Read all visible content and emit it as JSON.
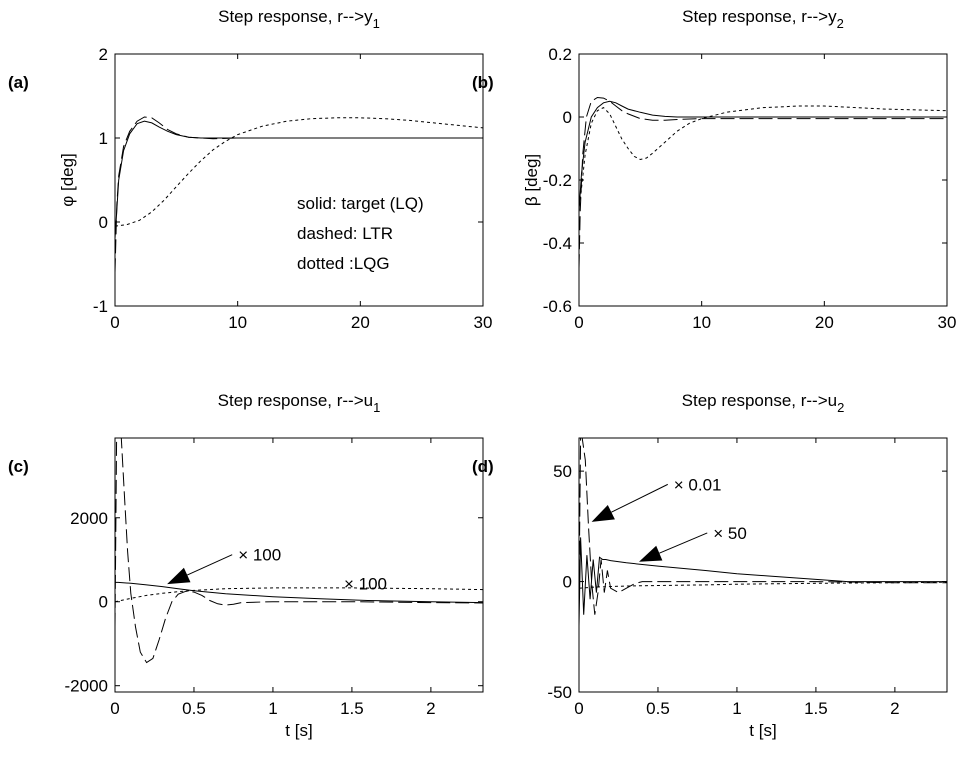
{
  "chart_data": [
    {
      "type": "line",
      "panel": "(a)",
      "title": "Step response, r-->y",
      "title_sub": "1",
      "xlabel": "",
      "ylabel": "φ [deg]",
      "xlim": [
        0,
        30
      ],
      "ylim": [
        -1,
        2
      ],
      "xticks": [
        "0",
        "10",
        "20",
        "30"
      ],
      "xtick_values": [
        0,
        10,
        20,
        30
      ],
      "yticks": [
        "-1",
        "0",
        "1",
        "2"
      ],
      "ytick_values": [
        -1,
        0,
        1,
        2
      ],
      "legend_text": [
        "solid: target (LQ)",
        "dashed: LTR",
        "dotted :LQG"
      ],
      "annotations": [],
      "series": [
        {
          "style": "solid",
          "x": [
            0,
            0.3,
            0.7,
            1.2,
            1.8,
            2.4,
            3.0,
            3.6,
            4.3,
            5.0,
            6.0,
            7.0,
            8.0,
            9.0,
            10,
            15,
            20,
            25,
            30
          ],
          "y": [
            -0.2,
            0.5,
            0.85,
            1.05,
            1.17,
            1.2,
            1.18,
            1.13,
            1.08,
            1.04,
            1.01,
            1.0,
            1.0,
            1.0,
            1.0,
            1.0,
            1.0,
            1.0,
            1.0
          ]
        },
        {
          "style": "dashed",
          "x": [
            0,
            0.15,
            0.3,
            0.7,
            1.2,
            1.8,
            2.4,
            3.0,
            3.6,
            4.3,
            5.0,
            6.0,
            7.0,
            8.0,
            10,
            15,
            20,
            25,
            30
          ],
          "y": [
            -0.6,
            0.2,
            0.55,
            0.9,
            1.08,
            1.2,
            1.25,
            1.24,
            1.18,
            1.1,
            1.05,
            1.01,
            1.0,
            0.99,
            1.0,
            1.0,
            1.0,
            1.0,
            1.0
          ]
        },
        {
          "style": "dotted",
          "x": [
            0,
            1,
            2,
            3,
            4,
            5,
            6,
            7,
            8,
            9,
            10,
            12,
            14,
            16,
            18,
            20,
            22,
            24,
            26,
            28,
            30
          ],
          "y": [
            -0.05,
            -0.03,
            0.02,
            0.12,
            0.26,
            0.42,
            0.58,
            0.73,
            0.86,
            0.96,
            1.04,
            1.14,
            1.2,
            1.23,
            1.24,
            1.24,
            1.23,
            1.21,
            1.18,
            1.15,
            1.12
          ]
        }
      ]
    },
    {
      "type": "line",
      "panel": "(b)",
      "title": "Step response, r-->y",
      "title_sub": "2",
      "xlabel": "",
      "ylabel": "β [deg]",
      "xlim": [
        0,
        30
      ],
      "ylim": [
        -0.6,
        0.2
      ],
      "xticks": [
        "0",
        "10",
        "20",
        "30"
      ],
      "xtick_values": [
        0,
        10,
        20,
        30
      ],
      "yticks": [
        "-0.6",
        "-0.4",
        "-0.2",
        "0",
        "0.2"
      ],
      "ytick_values": [
        -0.6,
        -0.4,
        -0.2,
        0,
        0.2
      ],
      "legend_text": [],
      "annotations": [],
      "series": [
        {
          "style": "solid",
          "x": [
            0,
            0.2,
            0.5,
            1.0,
            1.5,
            2.0,
            2.5,
            3.0,
            3.5,
            4.0,
            5.0,
            6.0,
            7.0,
            8.0,
            10,
            15,
            20,
            25,
            30
          ],
          "y": [
            -0.3,
            -0.18,
            -0.08,
            0.0,
            0.03,
            0.045,
            0.05,
            0.045,
            0.035,
            0.025,
            0.015,
            0.006,
            0.002,
            0.0,
            0.0,
            0.0,
            0.0,
            0.0,
            0.0
          ]
        },
        {
          "style": "dashed",
          "x": [
            0,
            0.1,
            0.3,
            0.6,
            1.0,
            1.5,
            2.0,
            2.5,
            3.0,
            3.5,
            4.0,
            5.0,
            6.0,
            7.0,
            8.0,
            10,
            15,
            20,
            25,
            30
          ],
          "y": [
            -0.48,
            -0.3,
            -0.12,
            0.0,
            0.05,
            0.062,
            0.06,
            0.05,
            0.035,
            0.02,
            0.01,
            -0.005,
            -0.01,
            -0.01,
            -0.008,
            -0.005,
            -0.005,
            -0.005,
            -0.005,
            -0.005
          ]
        },
        {
          "style": "dotted",
          "x": [
            0,
            0.5,
            1.0,
            1.5,
            2.0,
            2.5,
            3.0,
            3.5,
            4.0,
            4.5,
            5.0,
            5.5,
            6.0,
            7.0,
            8.0,
            9.0,
            10,
            12,
            15,
            18,
            20,
            25,
            30
          ],
          "y": [
            -0.3,
            -0.12,
            -0.02,
            0.02,
            0.03,
            0.01,
            -0.03,
            -0.07,
            -0.1,
            -0.125,
            -0.135,
            -0.13,
            -0.115,
            -0.08,
            -0.045,
            -0.02,
            -0.005,
            0.015,
            0.03,
            0.035,
            0.035,
            0.025,
            0.02
          ]
        }
      ]
    },
    {
      "type": "line",
      "panel": "(c)",
      "title": "Step response, r-->u",
      "title_sub": "1",
      "xlabel": "t [s]",
      "ylabel": "",
      "xlim": [
        0,
        2.33
      ],
      "ylim": [
        -2150,
        3900
      ],
      "xticks": [
        "0",
        "0.5",
        "1",
        "1.5",
        "2"
      ],
      "xtick_values": [
        0,
        0.5,
        1,
        1.5,
        2
      ],
      "yticks": [
        "-2000",
        "0",
        "2000"
      ],
      "ytick_values": [
        -2000,
        0,
        2000
      ],
      "legend_text": [],
      "annotations": [
        {
          "label": "× 100",
          "x": 0.78,
          "y": 1120,
          "arrow": true,
          "ax": 0.33,
          "ay": 420
        },
        {
          "label": "× 100",
          "x": 1.45,
          "y": 430,
          "arrow": false
        }
      ],
      "series": [
        {
          "style": "solid",
          "x": [
            0,
            0.02,
            0.1,
            0.2,
            0.3,
            0.4,
            0.5,
            0.7,
            1.0,
            1.3,
            1.6,
            2.0,
            2.33
          ],
          "y": [
            460,
            460,
            440,
            400,
            360,
            310,
            260,
            190,
            120,
            70,
            30,
            0,
            -20
          ]
        },
        {
          "style": "dashed",
          "x": [
            0,
            0.01,
            0.02,
            0.04,
            0.06,
            0.08,
            0.1,
            0.13,
            0.16,
            0.2,
            0.24,
            0.28,
            0.32,
            0.36,
            0.4,
            0.45,
            0.5,
            0.55,
            0.6,
            0.65,
            0.7,
            0.75,
            0.8,
            1.0,
            1.5,
            2.0,
            2.33
          ],
          "y": [
            -600,
            3900,
            3900,
            3900,
            2500,
            1200,
            200,
            -600,
            -1200,
            -1450,
            -1350,
            -900,
            -400,
            0,
            180,
            250,
            230,
            150,
            30,
            -50,
            -80,
            -60,
            -20,
            0,
            0,
            -20,
            -30
          ]
        },
        {
          "style": "dotted",
          "x": [
            0,
            0.1,
            0.2,
            0.3,
            0.4,
            0.5,
            0.7,
            1.0,
            1.5,
            2.0,
            2.33
          ],
          "y": [
            0,
            80,
            150,
            200,
            240,
            270,
            310,
            330,
            330,
            310,
            290
          ]
        }
      ]
    },
    {
      "type": "line",
      "panel": "(d)",
      "title": "Step response, r-->u",
      "title_sub": "2",
      "xlabel": "t [s]",
      "ylabel": "",
      "xlim": [
        0,
        2.33
      ],
      "ylim": [
        -50,
        65
      ],
      "xticks": [
        "0",
        "0.5",
        "1",
        "1.5",
        "2"
      ],
      "xtick_values": [
        0,
        0.5,
        1,
        1.5,
        2
      ],
      "yticks": [
        "-50",
        "0",
        "50"
      ],
      "ytick_values": [
        -50,
        0,
        50
      ],
      "legend_text": [],
      "annotations": [
        {
          "label": "× 0.01",
          "x": 0.6,
          "y": 44,
          "arrow": true,
          "ax": 0.08,
          "ay": 27
        },
        {
          "label": "× 50",
          "x": 0.85,
          "y": 22,
          "arrow": true,
          "ax": 0.38,
          "ay": 9
        }
      ],
      "series": [
        {
          "style": "solid",
          "x": [
            0,
            0.01,
            0.03,
            0.05,
            0.07,
            0.09,
            0.11,
            0.13,
            0.15,
            0.17,
            0.2,
            0.3,
            0.5,
            0.8,
            1.0,
            1.2,
            1.5,
            1.7,
            2.0,
            2.33
          ],
          "y": [
            -20,
            20,
            -15,
            12,
            -8,
            10,
            -5,
            11,
            10,
            10,
            9.5,
            8.5,
            7,
            5,
            3.5,
            2.5,
            1,
            0,
            0,
            0
          ]
        },
        {
          "style": "dashed",
          "x": [
            0,
            0.01,
            0.02,
            0.04,
            0.06,
            0.08,
            0.1,
            0.12,
            0.14,
            0.16,
            0.18,
            0.2,
            0.25,
            0.3,
            0.35,
            0.4,
            0.5,
            0.8,
            1.0,
            1.5,
            2.0,
            2.33
          ],
          "y": [
            -5,
            65,
            65,
            55,
            25,
            0,
            -15,
            -5,
            10,
            -5,
            5,
            -3,
            -5,
            -3,
            -1,
            0,
            0,
            0,
            0,
            0,
            -0.5,
            -0.5
          ]
        },
        {
          "style": "dotted",
          "x": [
            0,
            0.1,
            0.3,
            0.5,
            0.8,
            1.0,
            1.5,
            2.0,
            2.33
          ],
          "y": [
            -3,
            -2.5,
            -2,
            -1.8,
            -1.5,
            -1.2,
            -0.8,
            -0.5,
            -0.3
          ]
        }
      ]
    }
  ]
}
